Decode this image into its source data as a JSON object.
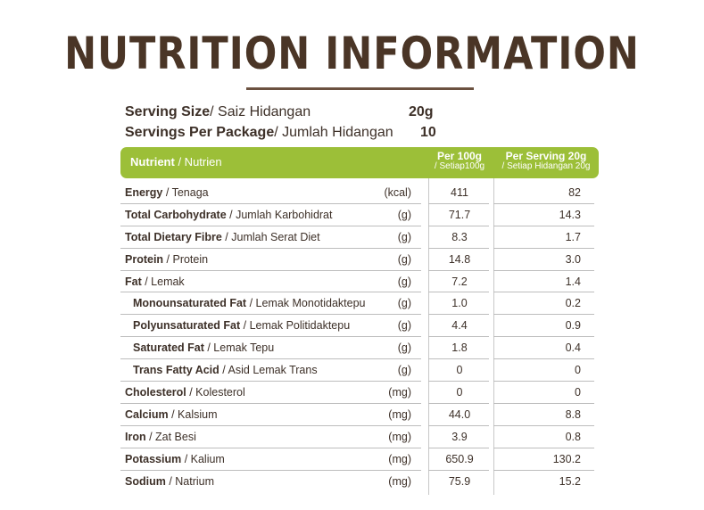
{
  "title": "NUTRITION INFORMATION",
  "serving": {
    "size_label_bold": "Serving Size",
    "size_label_rest": "/ Saiz Hidangan",
    "size_value": "20g",
    "per_package_label_bold": "Servings Per Package",
    "per_package_label_rest": "/ Jumlah Hidangan",
    "per_package_value": "10"
  },
  "colors": {
    "header_green": "#9cbf38",
    "title_brown": "#4a3526"
  },
  "header": {
    "nutrient_bold": "Nutrient",
    "nutrient_rest": " / Nutrien",
    "per100_line1": "Per 100g",
    "per100_line2": "/ Setiap100g",
    "perserving_line1": "Per Serving 20g",
    "perserving_line2": "/ Setiap Hidangan 20g"
  },
  "rows": [
    {
      "bold": "Energy",
      "rest": " / Tenaga",
      "unit": "(kcal)",
      "per100": "411",
      "perserving": "82",
      "sub": false
    },
    {
      "bold": "Total Carbohydrate",
      "rest": " / Jumlah Karbohidrat",
      "unit": "(g)",
      "per100": "71.7",
      "perserving": "14.3",
      "sub": false
    },
    {
      "bold": "Total Dietary Fibre",
      "rest": " / Jumlah Serat Diet",
      "unit": "(g)",
      "per100": "8.3",
      "perserving": "1.7",
      "sub": false
    },
    {
      "bold": "Protein",
      "rest": " / Protein",
      "unit": "(g)",
      "per100": "14.8",
      "perserving": "3.0",
      "sub": false
    },
    {
      "bold": "Fat",
      "rest": " / Lemak",
      "unit": "(g)",
      "per100": "7.2",
      "perserving": "1.4",
      "sub": false
    },
    {
      "bold": "Monounsaturated Fat",
      "rest": " / Lemak Monotidaktepu",
      "unit": "(g)",
      "per100": "1.0",
      "perserving": "0.2",
      "sub": true
    },
    {
      "bold": "Polyunsaturated Fat",
      "rest": " / Lemak Politidaktepu",
      "unit": "(g)",
      "per100": "4.4",
      "perserving": "0.9",
      "sub": true
    },
    {
      "bold": "Saturated Fat",
      "rest": " / Lemak Tepu",
      "unit": "(g)",
      "per100": "1.8",
      "perserving": "0.4",
      "sub": true
    },
    {
      "bold": "Trans Fatty Acid",
      "rest": " / Asid Lemak Trans",
      "unit": "(g)",
      "per100": "0",
      "perserving": "0",
      "sub": true
    },
    {
      "bold": "Cholesterol",
      "rest": " / Kolesterol",
      "unit": "(mg)",
      "per100": "0",
      "perserving": "0",
      "sub": false
    },
    {
      "bold": "Calcium",
      "rest": " / Kalsium",
      "unit": "(mg)",
      "per100": "44.0",
      "perserving": "8.8",
      "sub": false
    },
    {
      "bold": "Iron",
      "rest": " / Zat Besi",
      "unit": "(mg)",
      "per100": "3.9",
      "perserving": "0.8",
      "sub": false
    },
    {
      "bold": "Potassium",
      "rest": " / Kalium",
      "unit": "(mg)",
      "per100": "650.9",
      "perserving": "130.2",
      "sub": false
    },
    {
      "bold": "Sodium",
      "rest": " / Natrium",
      "unit": "(mg)",
      "per100": "75.9",
      "perserving": "15.2",
      "sub": false
    }
  ]
}
